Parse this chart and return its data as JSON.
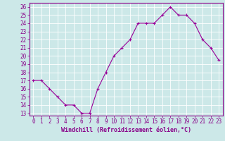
{
  "x": [
    0,
    1,
    2,
    3,
    4,
    5,
    6,
    7,
    8,
    9,
    10,
    11,
    12,
    13,
    14,
    15,
    16,
    17,
    18,
    19,
    20,
    21,
    22,
    23
  ],
  "y": [
    17,
    17,
    16,
    15,
    14,
    14,
    13,
    13,
    16,
    18,
    20,
    21,
    22,
    24,
    24,
    24,
    25,
    26,
    25,
    25,
    24,
    22,
    21,
    19.5
  ],
  "line_color": "#990099",
  "marker": "+",
  "bg_color": "#cce8e8",
  "grid_color": "#ffffff",
  "xlabel": "Windchill (Refroidissement éolien,°C)",
  "ylabel": "",
  "xlim": [
    -0.5,
    23.5
  ],
  "ylim": [
    12.7,
    26.5
  ],
  "yticks": [
    13,
    14,
    15,
    16,
    17,
    18,
    19,
    20,
    21,
    22,
    23,
    24,
    25,
    26
  ],
  "xticks": [
    0,
    1,
    2,
    3,
    4,
    5,
    6,
    7,
    8,
    9,
    10,
    11,
    12,
    13,
    14,
    15,
    16,
    17,
    18,
    19,
    20,
    21,
    22,
    23
  ],
  "tick_label_color": "#880088",
  "axis_color": "#880088",
  "tick_fontsize": 5.5,
  "xlabel_fontsize": 6.0,
  "linewidth": 0.8,
  "markersize": 3.5,
  "markeredgewidth": 0.8
}
